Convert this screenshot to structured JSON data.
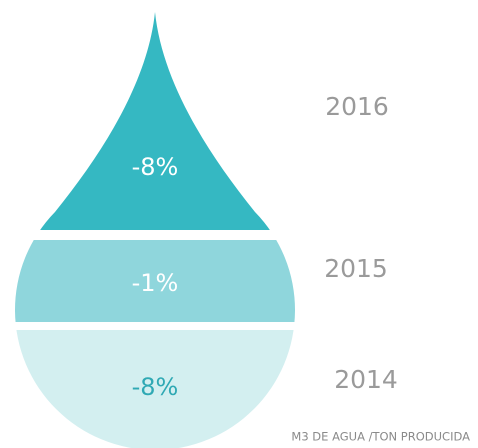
{
  "segments": [
    {
      "year": "2016",
      "label": "-8%"
    },
    {
      "year": "2015",
      "label": "-1%"
    },
    {
      "year": "2014",
      "label": "-8%"
    }
  ],
  "footnote": "M3 DE AGUA /TON PRODUCIDA"
}
